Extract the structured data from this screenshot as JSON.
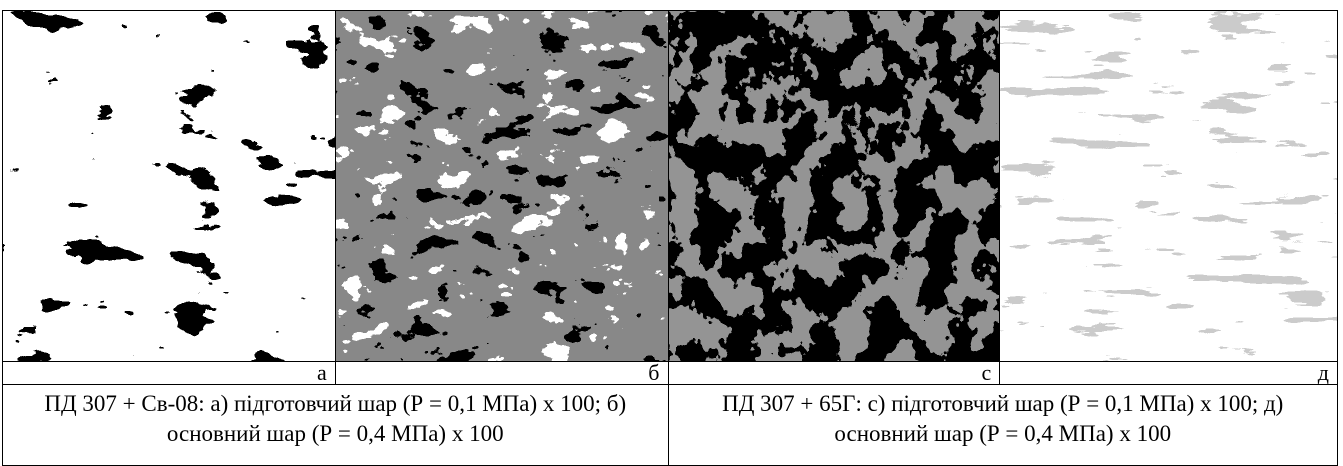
{
  "figure": {
    "panels": [
      {
        "label": "а"
      },
      {
        "label": "б"
      },
      {
        "label": "с"
      },
      {
        "label": "д"
      }
    ],
    "captions": [
      "ПД 307 + Св-08: а) підготовчий шар (Р = 0,1 МПа) х 100; б) основний шар (Р = 0,4 МПа) х 100",
      "ПД 307 + 65Г: с) підготовчий шар (Р = 0,1 МПа) х 100; д) основний шар (Р = 0,4 МПа) х 100"
    ]
  }
}
